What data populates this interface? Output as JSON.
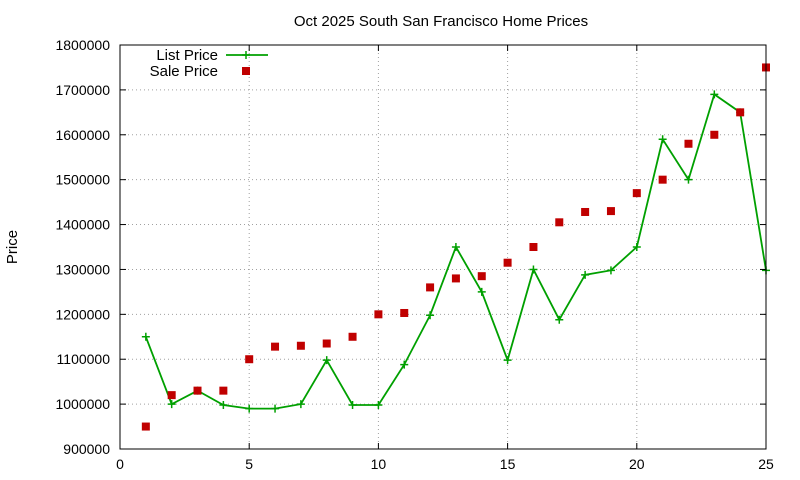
{
  "chart_data": {
    "type": "line",
    "title": "Oct 2025 South San Francisco Home Prices",
    "xlabel": "",
    "ylabel": "Price",
    "xlim": [
      0,
      25
    ],
    "ylim": [
      900000,
      1800000
    ],
    "x_ticks": [
      "0",
      "5",
      "10",
      "15",
      "20",
      "25"
    ],
    "y_ticks": [
      "900000",
      "1000000",
      "1100000",
      "1200000",
      "1300000",
      "1400000",
      "1500000",
      "1600000",
      "1700000",
      "1800000"
    ],
    "grid": true,
    "legend_position": "top-left",
    "series": [
      {
        "name": "List Price",
        "style": "line-points",
        "color": "#00a000",
        "marker": "plus",
        "x": [
          1,
          2,
          3,
          4,
          5,
          6,
          7,
          8,
          9,
          10,
          11,
          12,
          13,
          14,
          15,
          16,
          17,
          18,
          19,
          20,
          21,
          22,
          23,
          24,
          25
        ],
        "y": [
          1150000,
          1000000,
          1030000,
          998000,
          990000,
          990000,
          1000000,
          1098000,
          998000,
          998000,
          1088000,
          1198000,
          1350000,
          1250000,
          1098000,
          1300000,
          1188000,
          1288000,
          1298000,
          1350000,
          1590000,
          1500000,
          1690000,
          1650000,
          1298000
        ]
      },
      {
        "name": "Sale Price",
        "style": "points",
        "color": "#c00000",
        "marker": "square",
        "x": [
          1,
          2,
          3,
          4,
          5,
          6,
          7,
          8,
          9,
          10,
          11,
          12,
          13,
          14,
          15,
          16,
          17,
          18,
          19,
          20,
          21,
          22,
          23,
          24,
          25
        ],
        "y": [
          950000,
          1020000,
          1030000,
          1030000,
          1100000,
          1128000,
          1130000,
          1135000,
          1150000,
          1200000,
          1203000,
          1260000,
          1280000,
          1285000,
          1315000,
          1350000,
          1405000,
          1428000,
          1430000,
          1470000,
          1500000,
          1580000,
          1600000,
          1650000,
          1750000
        ]
      }
    ]
  }
}
